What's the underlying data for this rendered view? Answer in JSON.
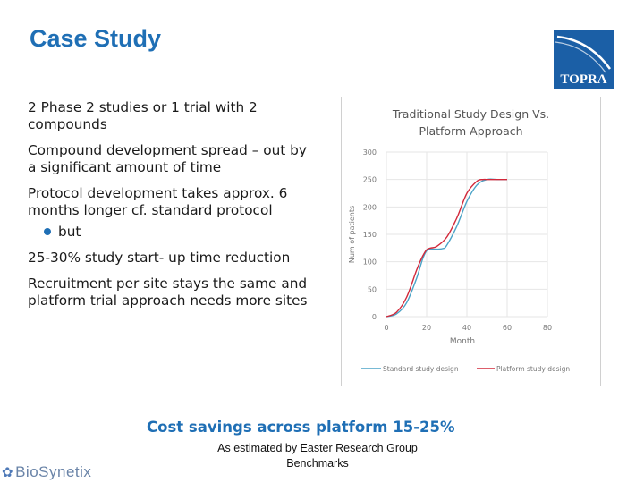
{
  "slide": {
    "title": "Case Study",
    "bullets": [
      "2 Phase 2 studies or 1 trial with 2 compounds",
      "Compound development spread – out by a significant amount of time",
      "Protocol development takes approx. 6 months longer cf. standard protocol"
    ],
    "sub_bullet": "but",
    "bullets_after": [
      "25-30% study start- up time reduction",
      "Recruitment per site stays the same and platform trial approach needs more sites"
    ],
    "cost_savings": "Cost savings across platform 15-25%",
    "estimate_note": "As estimated by Easter Research Group Benchmarks",
    "topra_logo": "TOPRA",
    "biosynetix_logo": "BioSynetix"
  },
  "colors": {
    "accent": "#1f6fb5",
    "standard": "#4ba3c7",
    "platform": "#d2283a"
  },
  "chart_data": {
    "type": "line",
    "title": "Traditional Study Design Vs. Platform Approach",
    "title_lines": [
      "Traditional Study Design Vs.",
      "Platform Approach"
    ],
    "xlabel": "Month",
    "ylabel": "Num of patients",
    "xlim": [
      0,
      80
    ],
    "ylim": [
      0,
      300
    ],
    "xticks": [
      0,
      20,
      40,
      60,
      80
    ],
    "yticks": [
      0,
      50,
      100,
      150,
      200,
      250,
      300
    ],
    "xtick_labels": [
      "0",
      "20",
      "40",
      "60",
      "80"
    ],
    "ytick_labels": [
      "0",
      "50",
      "100",
      "150",
      "200",
      "250",
      "300"
    ],
    "grid": true,
    "legend_position": "bottom",
    "series": [
      {
        "name": "Standard study design",
        "color": "#4ba3c7",
        "x": [
          0,
          5,
          10,
          15,
          18,
          20,
          22,
          25,
          28,
          30,
          35,
          40,
          45,
          50,
          55,
          60
        ],
        "y": [
          0,
          5,
          25,
          70,
          105,
          120,
          123,
          123,
          124,
          130,
          165,
          210,
          240,
          250,
          250,
          250
        ]
      },
      {
        "name": "Platform study design",
        "color": "#d2283a",
        "x": [
          0,
          5,
          10,
          15,
          18,
          20,
          22,
          25,
          30,
          35,
          40,
          45,
          48,
          50,
          55,
          60
        ],
        "y": [
          0,
          8,
          35,
          85,
          110,
          122,
          125,
          128,
          145,
          180,
          225,
          247,
          250,
          250,
          250,
          250
        ]
      }
    ]
  }
}
